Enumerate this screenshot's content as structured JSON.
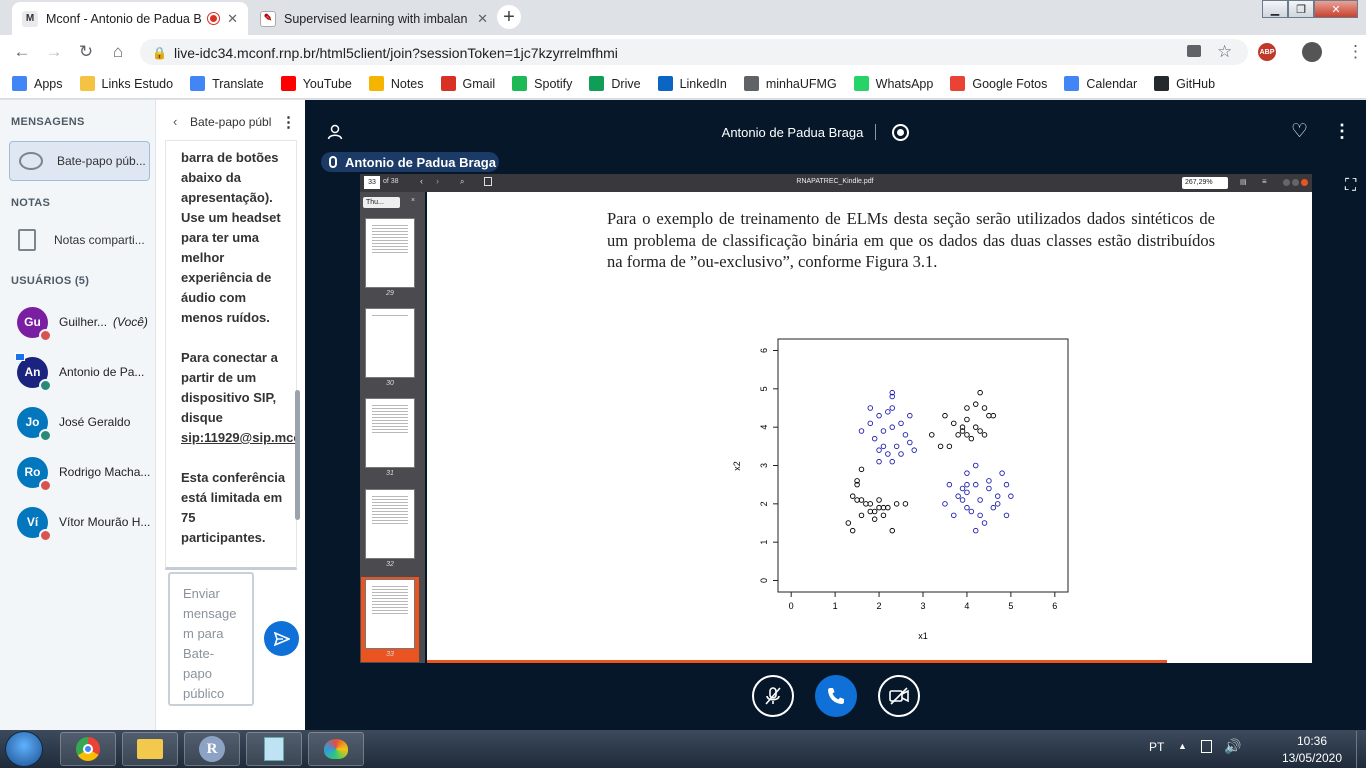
{
  "browser": {
    "tabs": [
      {
        "title": "Mconf - Antonio de Padua B",
        "favicon": "M",
        "active": true
      },
      {
        "title": "Supervised learning with imbalan",
        "favicon": "✎",
        "active": false
      }
    ],
    "new_tab": "+",
    "url": "live-idc34.mconf.rnp.br/html5client/join?sessionToken=1jc7kzyrrelmfhmi",
    "abp_label": "ABP",
    "bookmarks": [
      {
        "label": "Apps",
        "icon": "apps-icon",
        "color": "#4285f4"
      },
      {
        "label": "Links Estudo",
        "icon": "folder-icon",
        "color": "#f5c342"
      },
      {
        "label": "Translate",
        "icon": "translate-icon",
        "color": "#4285f4"
      },
      {
        "label": "YouTube",
        "icon": "youtube-icon",
        "color": "#ff0000"
      },
      {
        "label": "Notes",
        "icon": "notes-icon",
        "color": "#f4b400"
      },
      {
        "label": "Gmail",
        "icon": "gmail-icon",
        "color": "#d93025"
      },
      {
        "label": "Spotify",
        "icon": "spotify-icon",
        "color": "#1db954"
      },
      {
        "label": "Drive",
        "icon": "drive-icon",
        "color": "#0f9d58"
      },
      {
        "label": "LinkedIn",
        "icon": "linkedin-icon",
        "color": "#0a66c2"
      },
      {
        "label": "minhaUFMG",
        "icon": "globe-icon",
        "color": "#5f6368"
      },
      {
        "label": "WhatsApp",
        "icon": "whatsapp-icon",
        "color": "#25d366"
      },
      {
        "label": "Google Fotos",
        "icon": "photos-icon",
        "color": "#ea4335"
      },
      {
        "label": "Calendar",
        "icon": "calendar-icon",
        "color": "#4285f4"
      },
      {
        "label": "GitHub",
        "icon": "github-icon",
        "color": "#24292e"
      }
    ]
  },
  "sidebar": {
    "messages_header": "MENSAGENS",
    "public_chat": "Bate-papo púb...",
    "notes_header": "NOTAS",
    "shared_notes": "Notas comparti...",
    "users_header": "USUÁRIOS (5)",
    "users": [
      {
        "initials": "Gu",
        "name": "Guilher...",
        "you": "(Você)",
        "color": "#7b1fa2",
        "badge_color": "#d9534f"
      },
      {
        "initials": "An",
        "name": "Antonio de Pa...",
        "you": "",
        "color": "#1a237e",
        "badge_color": "#2a8a7a"
      },
      {
        "initials": "Jo",
        "name": "José Geraldo",
        "you": "",
        "color": "#0277bd",
        "badge_color": "#2a8a7a"
      },
      {
        "initials": "Ro",
        "name": "Rodrigo Macha...",
        "you": "",
        "color": "#0277bd",
        "badge_color": "#d9534f"
      },
      {
        "initials": "Ví",
        "name": "Vítor Mourão H...",
        "you": "",
        "color": "#0277bd",
        "badge_color": "#d9534f"
      }
    ]
  },
  "chat": {
    "header": "Bate-papo públ",
    "message_lines": [
      "barra de botões",
      "abaixo da",
      "apresentação).",
      "Use um headset",
      "para ter uma",
      "melhor",
      "experiência de",
      "áudio com",
      "menos ruídos.",
      "",
      "Para conectar a",
      "partir de um",
      "dispositivo SIP,",
      "disque",
      "sip:11929@sip.mco",
      "",
      "Esta conferência",
      "está limitada em",
      "75",
      "participantes."
    ],
    "input_placeholder_lines": [
      "Enviar",
      "mensage",
      "m para",
      "Bate-",
      "papo",
      "público"
    ]
  },
  "meeting": {
    "presenter": "Antonio de Padua Braga",
    "talking_label": "Antonio de Padua Braga"
  },
  "pdf": {
    "page_input": "33",
    "page_total": "of 38",
    "filename": "RNAPATREC_Kindle.pdf",
    "zoom": "267,29%",
    "sidebar_select": "Thu...",
    "thumbnails": [
      "29",
      "30",
      "31",
      "32",
      "33"
    ],
    "paragraph": "Para o exemplo de treinamento de ELMs desta seção serão utilizados dados sintéticos de um problema de classificação binária em que os dados das duas classes estão distribuídos na forma de ”ou-exclusivo”, conforme Figura 3.1."
  },
  "chart_data": {
    "type": "scatter",
    "xlabel": "x1",
    "ylabel": "x2",
    "xlim": [
      -0.3,
      6.3
    ],
    "ylim": [
      -0.3,
      6.3
    ],
    "xticks": [
      "0",
      "1",
      "2",
      "3",
      "4",
      "5",
      "6"
    ],
    "yticks": [
      "0",
      "1",
      "2",
      "3",
      "4",
      "5",
      "6"
    ],
    "series": [
      {
        "color": "#000000",
        "points": [
          [
            1.5,
            2.5
          ],
          [
            1.6,
            2.9
          ],
          [
            1.4,
            2.2
          ],
          [
            1.7,
            2.0
          ],
          [
            1.8,
            1.8
          ],
          [
            2.0,
            1.9
          ],
          [
            2.1,
            1.7
          ],
          [
            1.9,
            1.6
          ],
          [
            1.6,
            1.7
          ],
          [
            1.3,
            1.5
          ],
          [
            1.4,
            1.3
          ],
          [
            2.2,
            1.9
          ],
          [
            2.4,
            2.0
          ],
          [
            2.6,
            2.0
          ],
          [
            1.5,
            2.1
          ],
          [
            2.0,
            2.1
          ],
          [
            1.8,
            2.0
          ],
          [
            1.6,
            2.1
          ],
          [
            2.3,
            1.3
          ],
          [
            1.9,
            1.8
          ],
          [
            2.1,
            1.9
          ],
          [
            1.5,
            2.6
          ],
          [
            3.5,
            4.3
          ],
          [
            3.7,
            4.1
          ],
          [
            3.9,
            3.9
          ],
          [
            4.0,
            4.2
          ],
          [
            4.2,
            4.6
          ],
          [
            4.4,
            4.5
          ],
          [
            4.3,
            3.9
          ],
          [
            4.1,
            3.7
          ],
          [
            3.8,
            3.8
          ],
          [
            3.6,
            3.5
          ],
          [
            4.0,
            3.8
          ],
          [
            4.5,
            4.3
          ],
          [
            4.2,
            4.0
          ],
          [
            3.4,
            3.5
          ],
          [
            3.2,
            3.8
          ],
          [
            4.3,
            4.9
          ],
          [
            4.6,
            4.3
          ],
          [
            4.0,
            4.5
          ],
          [
            3.9,
            4.0
          ],
          [
            4.4,
            3.8
          ]
        ]
      },
      {
        "color": "#2020b0",
        "points": [
          [
            1.6,
            3.9
          ],
          [
            1.8,
            4.1
          ],
          [
            2.0,
            4.3
          ],
          [
            2.2,
            4.4
          ],
          [
            2.3,
            4.8
          ],
          [
            2.5,
            4.1
          ],
          [
            2.6,
            3.8
          ],
          [
            2.4,
            3.5
          ],
          [
            2.2,
            3.3
          ],
          [
            2.0,
            3.1
          ],
          [
            1.9,
            3.7
          ],
          [
            2.1,
            3.9
          ],
          [
            2.3,
            4.0
          ],
          [
            2.5,
            3.3
          ],
          [
            2.7,
            3.6
          ],
          [
            2.3,
            4.5
          ],
          [
            1.8,
            4.5
          ],
          [
            2.0,
            3.4
          ],
          [
            2.3,
            3.1
          ],
          [
            2.1,
            3.5
          ],
          [
            2.8,
            3.4
          ],
          [
            2.7,
            4.3
          ],
          [
            2.3,
            4.9
          ],
          [
            3.6,
            2.5
          ],
          [
            3.8,
            2.2
          ],
          [
            4.0,
            2.3
          ],
          [
            4.2,
            2.5
          ],
          [
            4.1,
            1.8
          ],
          [
            4.3,
            2.1
          ],
          [
            4.5,
            2.4
          ],
          [
            4.7,
            2.2
          ],
          [
            4.9,
            2.5
          ],
          [
            4.8,
            2.8
          ],
          [
            3.7,
            1.7
          ],
          [
            3.9,
            2.1
          ],
          [
            4.4,
            1.5
          ],
          [
            4.6,
            1.9
          ],
          [
            5.0,
            2.2
          ],
          [
            4.9,
            1.7
          ],
          [
            4.0,
            2.8
          ],
          [
            4.2,
            3.0
          ],
          [
            3.5,
            2.0
          ],
          [
            4.0,
            2.5
          ],
          [
            4.3,
            1.7
          ],
          [
            4.0,
            1.9
          ],
          [
            4.5,
            2.6
          ],
          [
            3.9,
            2.4
          ],
          [
            4.7,
            2.0
          ],
          [
            4.2,
            1.3
          ]
        ]
      }
    ]
  },
  "taskbar": {
    "lang": "PT",
    "time": "10:36",
    "date": "13/05/2020",
    "apps": [
      "start-button",
      "chrome",
      "explorer",
      "r",
      "notepad",
      "paint"
    ]
  }
}
